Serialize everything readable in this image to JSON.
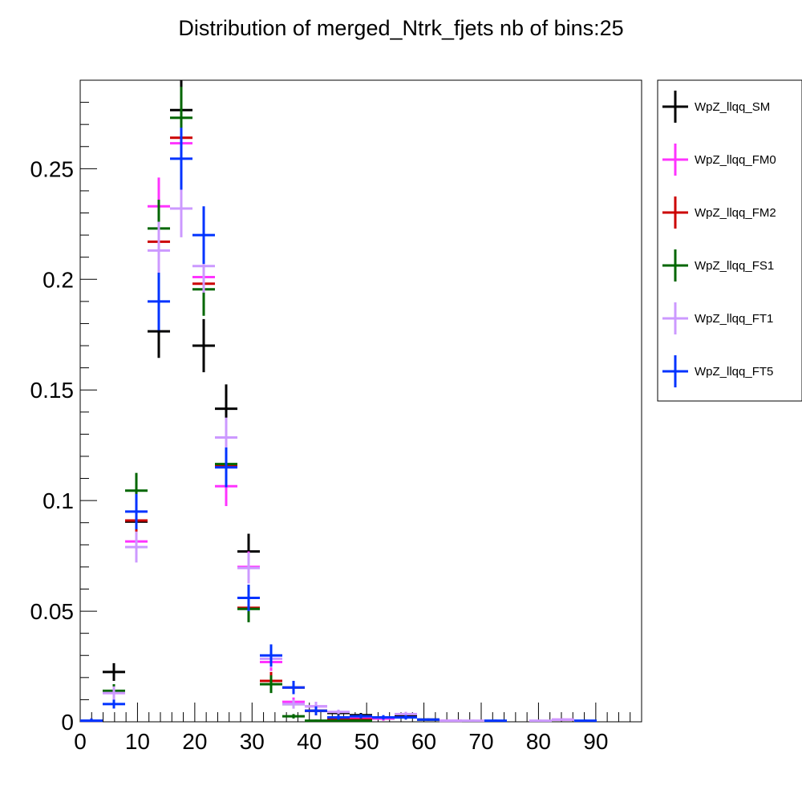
{
  "chart_data": {
    "type": "scatter",
    "title": "Distribution of merged_Ntrk_fjets nb of bins:25",
    "xlabel": "",
    "ylabel": "",
    "xlim": [
      0,
      98
    ],
    "ylim": [
      0,
      0.29
    ],
    "x_ticks": [
      0,
      10,
      20,
      30,
      40,
      50,
      60,
      70,
      80,
      90
    ],
    "x_tick_labels": [
      "0",
      "10",
      "20",
      "30",
      "40",
      "50",
      "60",
      "70",
      "80",
      "90"
    ],
    "y_ticks": [
      0,
      0.05,
      0.1,
      0.15,
      0.2,
      0.25
    ],
    "y_tick_labels": [
      "0",
      "0.05",
      "0.1",
      "0.15",
      "0.2",
      "0.25"
    ],
    "bin_width": 3.92,
    "legend_position": "outside-right",
    "series": [
      {
        "name": "WpZ_llqq_SM",
        "color": "#000000",
        "points": [
          {
            "x": 1.96,
            "y": 0.0005,
            "err": 0.001
          },
          {
            "x": 5.88,
            "y": 0.0225,
            "err": 0.004
          },
          {
            "x": 9.8,
            "y": 0.0905,
            "err": 0.006
          },
          {
            "x": 13.72,
            "y": 0.1765,
            "err": 0.012
          },
          {
            "x": 17.64,
            "y": 0.2765,
            "err": 0.014
          },
          {
            "x": 21.56,
            "y": 0.17,
            "err": 0.012
          },
          {
            "x": 25.48,
            "y": 0.1415,
            "err": 0.011
          },
          {
            "x": 29.4,
            "y": 0.077,
            "err": 0.008
          },
          {
            "x": 33.32,
            "y": 0.0185,
            "err": 0.004
          },
          {
            "x": 37.24,
            "y": 0.008,
            "err": 0.002
          },
          {
            "x": 41.16,
            "y": 0.005,
            "err": 0.002
          },
          {
            "x": 45.08,
            "y": 0.004,
            "err": 0.001
          },
          {
            "x": 49.0,
            "y": 0.003,
            "err": 0.001
          },
          {
            "x": 52.92,
            "y": 0.0015,
            "err": 0.001
          },
          {
            "x": 56.84,
            "y": 0.003,
            "err": 0.001
          },
          {
            "x": 60.76,
            "y": 0.001,
            "err": 0.0005
          }
        ]
      },
      {
        "name": "WpZ_llqq_FM0",
        "color": "#ff33ff",
        "points": [
          {
            "x": 1.96,
            "y": 0.0005,
            "err": 0.001
          },
          {
            "x": 5.88,
            "y": 0.013,
            "err": 0.003
          },
          {
            "x": 9.8,
            "y": 0.0815,
            "err": 0.007
          },
          {
            "x": 13.72,
            "y": 0.233,
            "err": 0.013
          },
          {
            "x": 17.64,
            "y": 0.2615,
            "err": 0.014
          },
          {
            "x": 21.56,
            "y": 0.201,
            "err": 0.012
          },
          {
            "x": 25.48,
            "y": 0.1065,
            "err": 0.009
          },
          {
            "x": 29.4,
            "y": 0.07,
            "err": 0.007
          },
          {
            "x": 33.32,
            "y": 0.027,
            "err": 0.004
          },
          {
            "x": 37.24,
            "y": 0.009,
            "err": 0.002
          },
          {
            "x": 41.16,
            "y": 0.007,
            "err": 0.002
          },
          {
            "x": 45.08,
            "y": 0.0015,
            "err": 0.001
          },
          {
            "x": 49.0,
            "y": 0.002,
            "err": 0.001
          },
          {
            "x": 52.92,
            "y": 0.0015,
            "err": 0.001
          },
          {
            "x": 56.84,
            "y": 0.002,
            "err": 0.001
          },
          {
            "x": 64.68,
            "y": 0.0005,
            "err": 0.0005
          },
          {
            "x": 84.28,
            "y": 0.001,
            "err": 0.0005
          }
        ]
      },
      {
        "name": "WpZ_llqq_FM2",
        "color": "#cc0000",
        "points": [
          {
            "x": 1.96,
            "y": 0.0005,
            "err": 0.001
          },
          {
            "x": 5.88,
            "y": 0.0135,
            "err": 0.003
          },
          {
            "x": 9.8,
            "y": 0.091,
            "err": 0.007
          },
          {
            "x": 13.72,
            "y": 0.217,
            "err": 0.013
          },
          {
            "x": 17.64,
            "y": 0.264,
            "err": 0.014
          },
          {
            "x": 21.56,
            "y": 0.198,
            "err": 0.012
          },
          {
            "x": 25.48,
            "y": 0.116,
            "err": 0.009
          },
          {
            "x": 29.4,
            "y": 0.0515,
            "err": 0.006
          },
          {
            "x": 33.32,
            "y": 0.0185,
            "err": 0.004
          },
          {
            "x": 37.24,
            "y": 0.0155,
            "err": 0.003
          },
          {
            "x": 41.16,
            "y": 0.005,
            "err": 0.002
          },
          {
            "x": 45.08,
            "y": 0.001,
            "err": 0.001
          },
          {
            "x": 49.0,
            "y": 0.001,
            "err": 0.001
          }
        ]
      },
      {
        "name": "WpZ_llqq_FS1",
        "color": "#006600",
        "points": [
          {
            "x": 1.96,
            "y": 0.0005,
            "err": 0.001
          },
          {
            "x": 5.88,
            "y": 0.014,
            "err": 0.003
          },
          {
            "x": 9.8,
            "y": 0.1045,
            "err": 0.008
          },
          {
            "x": 13.72,
            "y": 0.223,
            "err": 0.013
          },
          {
            "x": 17.64,
            "y": 0.273,
            "err": 0.014
          },
          {
            "x": 21.56,
            "y": 0.1955,
            "err": 0.012
          },
          {
            "x": 25.48,
            "y": 0.1165,
            "err": 0.009
          },
          {
            "x": 29.4,
            "y": 0.051,
            "err": 0.006
          },
          {
            "x": 33.32,
            "y": 0.017,
            "err": 0.004
          },
          {
            "x": 37.24,
            "y": 0.0025,
            "err": 0.001
          },
          {
            "x": 41.16,
            "y": 0.0005,
            "err": 0.0005
          },
          {
            "x": 45.08,
            "y": 0.0005,
            "err": 0.0005
          },
          {
            "x": 49.0,
            "y": 0.0005,
            "err": 0.0005
          }
        ]
      },
      {
        "name": "WpZ_llqq_FT1",
        "color": "#cc99ff",
        "points": [
          {
            "x": 1.96,
            "y": 0.0005,
            "err": 0.001
          },
          {
            "x": 5.88,
            "y": 0.013,
            "err": 0.003
          },
          {
            "x": 9.8,
            "y": 0.079,
            "err": 0.007
          },
          {
            "x": 13.72,
            "y": 0.213,
            "err": 0.013
          },
          {
            "x": 17.64,
            "y": 0.232,
            "err": 0.013
          },
          {
            "x": 21.56,
            "y": 0.206,
            "err": 0.012
          },
          {
            "x": 25.48,
            "y": 0.1285,
            "err": 0.009
          },
          {
            "x": 29.4,
            "y": 0.0695,
            "err": 0.007
          },
          {
            "x": 33.32,
            "y": 0.0285,
            "err": 0.004
          },
          {
            "x": 37.24,
            "y": 0.008,
            "err": 0.002
          },
          {
            "x": 41.16,
            "y": 0.007,
            "err": 0.002
          },
          {
            "x": 45.08,
            "y": 0.0045,
            "err": 0.001
          },
          {
            "x": 52.92,
            "y": 0.002,
            "err": 0.001
          },
          {
            "x": 56.84,
            "y": 0.0035,
            "err": 0.001
          },
          {
            "x": 64.68,
            "y": 0.0005,
            "err": 0.0005
          },
          {
            "x": 68.6,
            "y": 0.0005,
            "err": 0.0005
          },
          {
            "x": 80.36,
            "y": 0.0005,
            "err": 0.0005
          },
          {
            "x": 84.28,
            "y": 0.001,
            "err": 0.0005
          }
        ]
      },
      {
        "name": "WpZ_llqq_FT5",
        "color": "#0033ff",
        "points": [
          {
            "x": 1.96,
            "y": 0.0005,
            "err": 0.001
          },
          {
            "x": 5.88,
            "y": 0.008,
            "err": 0.002
          },
          {
            "x": 9.8,
            "y": 0.095,
            "err": 0.008
          },
          {
            "x": 13.72,
            "y": 0.19,
            "err": 0.013
          },
          {
            "x": 17.64,
            "y": 0.2545,
            "err": 0.014
          },
          {
            "x": 21.56,
            "y": 0.22,
            "err": 0.013
          },
          {
            "x": 25.48,
            "y": 0.115,
            "err": 0.009
          },
          {
            "x": 29.4,
            "y": 0.056,
            "err": 0.006
          },
          {
            "x": 33.32,
            "y": 0.03,
            "err": 0.005
          },
          {
            "x": 37.24,
            "y": 0.0155,
            "err": 0.003
          },
          {
            "x": 41.16,
            "y": 0.005,
            "err": 0.002
          },
          {
            "x": 45.08,
            "y": 0.002,
            "err": 0.001
          },
          {
            "x": 49.0,
            "y": 0.0025,
            "err": 0.001
          },
          {
            "x": 52.92,
            "y": 0.002,
            "err": 0.001
          },
          {
            "x": 56.84,
            "y": 0.002,
            "err": 0.001
          },
          {
            "x": 60.76,
            "y": 0.001,
            "err": 0.0005
          },
          {
            "x": 72.52,
            "y": 0.0005,
            "err": 0.0005
          },
          {
            "x": 88.2,
            "y": 0.0005,
            "err": 0.0005
          }
        ]
      }
    ]
  }
}
